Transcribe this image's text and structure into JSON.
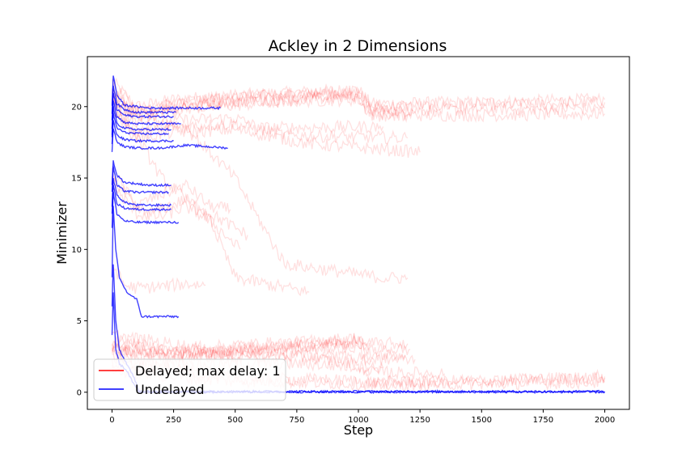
{
  "chart_data": {
    "type": "line",
    "title": "Ackley in 2 Dimensions",
    "xlabel": "Step",
    "ylabel": "Minimizer",
    "xlim": [
      -100,
      2100
    ],
    "ylim": [
      -1.2,
      23.5
    ],
    "xticks": [
      0,
      250,
      500,
      750,
      1000,
      1250,
      1500,
      1750,
      2000
    ],
    "yticks": [
      0,
      5,
      10,
      15,
      20
    ],
    "grid": false,
    "legend_position": "lower-left",
    "colors": {
      "delayed": "#ff0000",
      "undelayed": "#0000ff"
    },
    "series": [
      {
        "name": "Delayed; max delay: 1",
        "color": "#ff0000",
        "alpha": 0.12,
        "runs": [
          {
            "x": [
              0,
              100,
              250,
              500,
              750,
              1000,
              1050,
              1500,
              2000
            ],
            "y": [
              21.8,
              20.0,
              20.5,
              20.8,
              21.0,
              21.2,
              20.2,
              20.3,
              20.5
            ]
          },
          {
            "x": [
              0,
              100,
              250,
              500,
              750,
              1000,
              1050,
              1500,
              2000
            ],
            "y": [
              21.5,
              19.8,
              20.2,
              20.6,
              20.9,
              21.0,
              20.0,
              20.1,
              20.3
            ]
          },
          {
            "x": [
              0,
              100,
              250,
              500,
              750,
              1000,
              1050,
              1500,
              2000
            ],
            "y": [
              21.0,
              19.6,
              20.0,
              20.4,
              20.6,
              20.8,
              19.7,
              19.8,
              19.9
            ]
          },
          {
            "x": [
              0,
              100,
              250,
              500,
              750,
              1000,
              1050,
              1500,
              2000
            ],
            "y": [
              20.8,
              19.3,
              19.8,
              20.1,
              20.4,
              20.5,
              19.4,
              19.4,
              19.5
            ]
          },
          {
            "x": [
              0,
              100,
              250,
              500,
              750,
              1000,
              1050,
              1220
            ],
            "y": [
              21.0,
              19.5,
              20.3,
              20.7,
              20.8,
              21.1,
              19.8,
              19.7
            ]
          },
          {
            "x": [
              0,
              100,
              250,
              500,
              750,
              1000,
              1050,
              1200
            ],
            "y": [
              20.6,
              19.0,
              19.9,
              20.3,
              20.5,
              20.7,
              19.5,
              19.4
            ]
          },
          {
            "x": [
              0,
              100,
              250,
              500,
              600,
              1100
            ],
            "y": [
              20.5,
              18.5,
              19.0,
              19.2,
              18.5,
              18.6
            ]
          },
          {
            "x": [
              0,
              100,
              250,
              500,
              700,
              1200
            ],
            "y": [
              20.2,
              18.0,
              18.6,
              18.8,
              18.0,
              17.8
            ]
          },
          {
            "x": [
              0,
              100,
              250,
              500,
              800,
              1250
            ],
            "y": [
              19.8,
              17.8,
              18.2,
              18.4,
              17.4,
              16.8
            ]
          },
          {
            "x": [
              0,
              100,
              150,
              300,
              400,
              480
            ],
            "y": [
              15.5,
              13.0,
              13.5,
              14.5,
              13.0,
              12.8
            ]
          },
          {
            "x": [
              0,
              100,
              150,
              300,
              450,
              550
            ],
            "y": [
              15.0,
              12.8,
              12.5,
              13.5,
              12.0,
              11.0
            ]
          },
          {
            "x": [
              0,
              100,
              200,
              300,
              400,
              520
            ],
            "y": [
              14.5,
              12.5,
              12.3,
              13.0,
              12.0,
              10.0
            ]
          },
          {
            "x": [
              0,
              50,
              100,
              200,
              300,
              380
            ],
            "y": [
              9.0,
              7.5,
              7.3,
              7.4,
              7.6,
              7.5
            ]
          },
          {
            "x": [
              0,
              100,
              200,
              400,
              500,
              800
            ],
            "y": [
              20.0,
              18.0,
              15.0,
              12.0,
              8.0,
              7.0
            ]
          },
          {
            "x": [
              0,
              100,
              300,
              500,
              700,
              1100,
              1200
            ],
            "y": [
              20.5,
              19.5,
              18.5,
              15.0,
              9.0,
              8.0,
              8.0
            ]
          },
          {
            "x": [
              0,
              250,
              500,
              750,
              1000,
              1100
            ],
            "y": [
              2.5,
              1.8,
              2.0,
              2.0,
              1.8,
              1.7
            ]
          },
          {
            "x": [
              0,
              250,
              500,
              750,
              1000,
              1050
            ],
            "y": [
              3.5,
              2.8,
              2.5,
              2.6,
              2.4,
              2.2
            ]
          },
          {
            "x": [
              0,
              300,
              500,
              750,
              1000,
              1050,
              1500,
              2000
            ],
            "y": [
              2.0,
              1.5,
              1.0,
              0.9,
              0.8,
              0.7,
              0.8,
              1.0
            ]
          },
          {
            "x": [
              0,
              300,
              500,
              750,
              1000,
              1050,
              1500,
              2000
            ],
            "y": [
              1.5,
              1.0,
              0.8,
              0.7,
              0.6,
              0.5,
              0.6,
              0.7
            ]
          },
          {
            "x": [
              0,
              400,
              500,
              750,
              1000,
              1050,
              1500,
              2000
            ],
            "y": [
              4.0,
              3.0,
              2.8,
              2.5,
              2.0,
              0.6,
              0.8,
              1.1
            ]
          },
          {
            "x": [
              0,
              250,
              500,
              750,
              1000,
              1050,
              1200
            ],
            "y": [
              3.0,
              2.5,
              3.0,
              3.2,
              3.5,
              3.4,
              3.4
            ]
          },
          {
            "x": [
              0,
              250,
              500,
              750,
              1000,
              1050,
              1350
            ],
            "y": [
              2.8,
              2.4,
              2.7,
              3.0,
              3.1,
              1.4,
              1.3
            ]
          },
          {
            "x": [
              0,
              250,
              500,
              750,
              1000,
              1050,
              1230
            ],
            "y": [
              3.2,
              2.6,
              2.9,
              3.2,
              3.4,
              2.3,
              2.3
            ]
          },
          {
            "x": [
              0,
              250,
              500,
              750,
              1000,
              1050,
              1190
            ],
            "y": [
              3.6,
              2.9,
              3.3,
              3.5,
              3.8,
              2.6,
              2.6
            ]
          },
          {
            "x": [
              0,
              250,
              500,
              750,
              1000,
              1050,
              1210
            ],
            "y": [
              3.0,
              2.7,
              3.0,
              3.3,
              3.6,
              3.0,
              3.0
            ]
          }
        ]
      },
      {
        "name": "Undelayed",
        "color": "#0000ff",
        "alpha": 0.75,
        "runs": [
          {
            "x": [
              0,
              5,
              20,
              50,
              100,
              150,
              200,
              250,
              300,
              440
            ],
            "y": [
              20.0,
              22.2,
              20.8,
              20.1,
              20.0,
              19.9,
              19.9,
              19.9,
              19.9,
              19.9
            ]
          },
          {
            "x": [
              0,
              5,
              20,
              50,
              100,
              150,
              200,
              260
            ],
            "y": [
              19.5,
              21.5,
              20.2,
              19.8,
              19.6,
              19.6,
              19.6,
              19.6
            ]
          },
          {
            "x": [
              0,
              5,
              20,
              50,
              100,
              150,
              200,
              250
            ],
            "y": [
              19.0,
              21.0,
              19.8,
              19.4,
              19.3,
              19.3,
              19.3,
              19.3
            ]
          },
          {
            "x": [
              0,
              5,
              20,
              50,
              100,
              150,
              200,
              280
            ],
            "y": [
              18.5,
              20.5,
              19.3,
              18.9,
              18.8,
              18.8,
              18.8,
              18.8
            ]
          },
          {
            "x": [
              0,
              5,
              20,
              50,
              100,
              150,
              200,
              240
            ],
            "y": [
              18.0,
              20.0,
              18.8,
              18.5,
              18.4,
              18.4,
              18.4,
              18.4
            ]
          },
          {
            "x": [
              0,
              5,
              20,
              50,
              100,
              150,
              200,
              230
            ],
            "y": [
              17.8,
              19.5,
              18.5,
              18.2,
              18.1,
              18.1,
              18.1,
              18.1
            ]
          },
          {
            "x": [
              0,
              5,
              20,
              50,
              100,
              150,
              200,
              250
            ],
            "y": [
              17.3,
              19.0,
              18.0,
              17.7,
              17.6,
              17.6,
              17.6,
              17.6
            ]
          },
          {
            "x": [
              0,
              5,
              20,
              50,
              100,
              150,
              200,
              300,
              470
            ],
            "y": [
              16.8,
              18.5,
              17.5,
              17.2,
              17.1,
              17.1,
              17.1,
              17.3,
              17.1
            ]
          },
          {
            "x": [
              0,
              5,
              20,
              50,
              100,
              150,
              240
            ],
            "y": [
              14.5,
              16.2,
              15.2,
              14.7,
              14.6,
              14.5,
              14.5
            ]
          },
          {
            "x": [
              0,
              5,
              20,
              50,
              100,
              150,
              230
            ],
            "y": [
              14.0,
              15.8,
              14.5,
              14.1,
              14.0,
              14.0,
              14.0
            ]
          },
          {
            "x": [
              0,
              5,
              20,
              50,
              100,
              150,
              240
            ],
            "y": [
              13.0,
              15.0,
              13.8,
              13.3,
              13.1,
              13.1,
              13.1
            ]
          },
          {
            "x": [
              0,
              5,
              20,
              50,
              100,
              150,
              240
            ],
            "y": [
              12.5,
              14.5,
              13.2,
              12.9,
              12.8,
              12.8,
              12.8
            ]
          },
          {
            "x": [
              0,
              5,
              20,
              50,
              100,
              150,
              270
            ],
            "y": [
              11.5,
              14.0,
              12.5,
              12.0,
              11.9,
              11.9,
              11.9
            ]
          },
          {
            "x": [
              0,
              5,
              15,
              30,
              60,
              100,
              120,
              270
            ],
            "y": [
              8.0,
              13.0,
              10.0,
              8.0,
              7.0,
              6.5,
              5.3,
              5.3
            ]
          },
          {
            "x": [
              0,
              5,
              15,
              30,
              60,
              90,
              110,
              2000
            ],
            "y": [
              6.0,
              9.0,
              5.0,
              3.0,
              2.0,
              1.0,
              0.05,
              0.05
            ]
          },
          {
            "x": [
              0,
              5,
              15,
              30,
              60,
              90,
              110,
              2000
            ],
            "y": [
              4.0,
              7.0,
              3.0,
              2.0,
              1.5,
              0.5,
              0.02,
              0.02
            ]
          }
        ]
      }
    ]
  }
}
